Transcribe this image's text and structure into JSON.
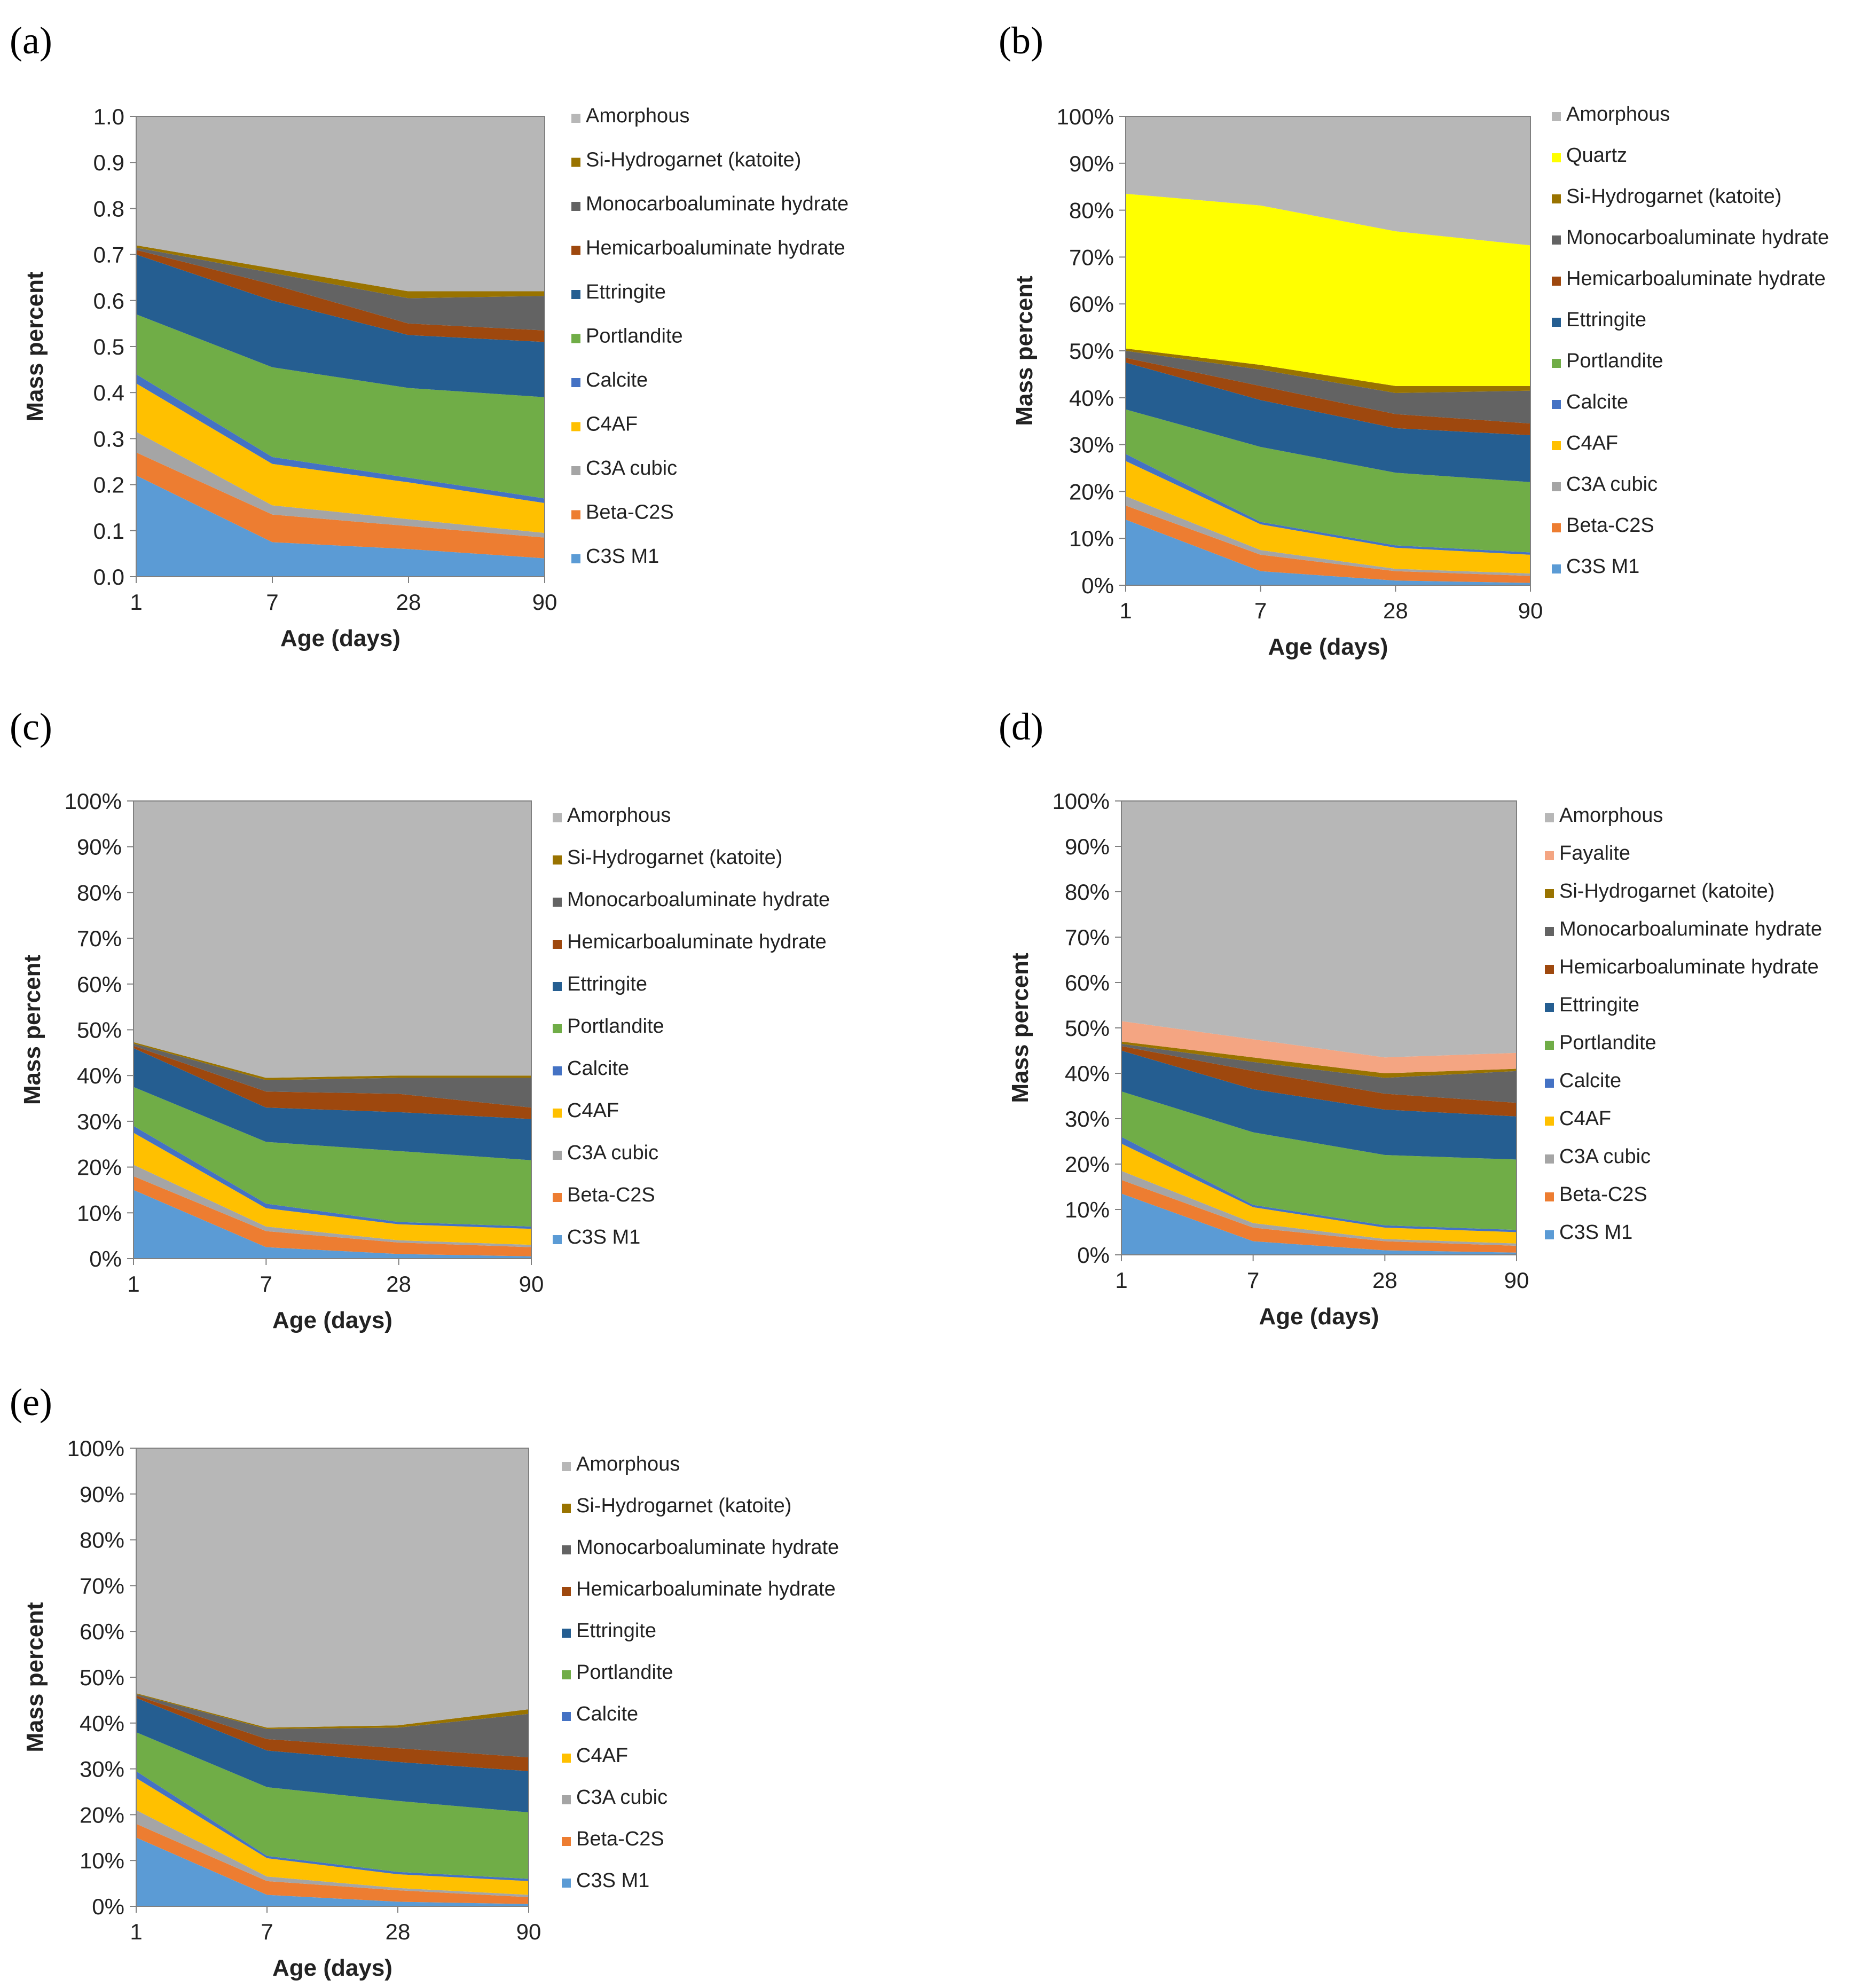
{
  "chart_data": [
    {
      "panel": "(a)",
      "type": "area",
      "stacked": true,
      "categories": [
        "1",
        "7",
        "28",
        "90"
      ],
      "xlabel": "Age (days)",
      "ylabel": "Mass percent",
      "ylim": [
        0,
        1
      ],
      "y_ticks": [
        "0.0",
        "0.1",
        "0.2",
        "0.3",
        "0.4",
        "0.5",
        "0.6",
        "0.7",
        "0.8",
        "0.9",
        "1.0"
      ],
      "legend": "right",
      "series": [
        {
          "name": "C3S M1",
          "color": "#5b9bd5",
          "values": [
            0.22,
            0.075,
            0.06,
            0.04
          ]
        },
        {
          "name": "Beta-C2S",
          "color": "#ed7d31",
          "values": [
            0.05,
            0.06,
            0.05,
            0.045
          ]
        },
        {
          "name": "C3A cubic",
          "color": "#a5a5a5",
          "values": [
            0.045,
            0.02,
            0.015,
            0.01
          ]
        },
        {
          "name": "C4AF",
          "color": "#ffc000",
          "values": [
            0.105,
            0.09,
            0.08,
            0.065
          ]
        },
        {
          "name": "Calcite",
          "color": "#4472c4",
          "values": [
            0.02,
            0.015,
            0.01,
            0.01
          ]
        },
        {
          "name": "Portlandite",
          "color": "#70ad47",
          "values": [
            0.13,
            0.195,
            0.195,
            0.22
          ]
        },
        {
          "name": "Ettringite",
          "color": "#255e91",
          "values": [
            0.13,
            0.145,
            0.115,
            0.12
          ]
        },
        {
          "name": "Hemicarboaluminate hydrate",
          "color": "#9e480e",
          "values": [
            0.01,
            0.035,
            0.025,
            0.025
          ]
        },
        {
          "name": "Monocarboaluminate hydrate",
          "color": "#636363",
          "values": [
            0.005,
            0.025,
            0.055,
            0.075
          ]
        },
        {
          "name": "Si-Hydrogarnet (katoite)",
          "color": "#997300",
          "values": [
            0.005,
            0.01,
            0.015,
            0.01
          ]
        },
        {
          "name": "Amorphous",
          "color": "#b7b7b7",
          "values": [
            0.28,
            0.335,
            0.38,
            0.38
          ]
        }
      ]
    },
    {
      "panel": "(b)",
      "type": "area",
      "stacked": true,
      "categories": [
        "1",
        "7",
        "28",
        "90"
      ],
      "xlabel": "Age (days)",
      "ylabel": "Mass percent",
      "ylim": [
        0,
        1
      ],
      "y_ticks": [
        "0%",
        "10%",
        "20%",
        "30%",
        "40%",
        "50%",
        "60%",
        "70%",
        "80%",
        "90%",
        "100%"
      ],
      "legend": "right",
      "series": [
        {
          "name": "C3S M1",
          "color": "#5b9bd5",
          "values": [
            0.14,
            0.03,
            0.01,
            0.005
          ]
        },
        {
          "name": "Beta-C2S",
          "color": "#ed7d31",
          "values": [
            0.03,
            0.035,
            0.02,
            0.015
          ]
        },
        {
          "name": "C3A cubic",
          "color": "#a5a5a5",
          "values": [
            0.02,
            0.01,
            0.005,
            0.005
          ]
        },
        {
          "name": "C4AF",
          "color": "#ffc000",
          "values": [
            0.075,
            0.055,
            0.045,
            0.04
          ]
        },
        {
          "name": "Calcite",
          "color": "#4472c4",
          "values": [
            0.015,
            0.005,
            0.005,
            0.005
          ]
        },
        {
          "name": "Portlandite",
          "color": "#70ad47",
          "values": [
            0.095,
            0.16,
            0.155,
            0.15
          ]
        },
        {
          "name": "Ettringite",
          "color": "#255e91",
          "values": [
            0.1,
            0.1,
            0.095,
            0.1
          ]
        },
        {
          "name": "Hemicarboaluminate hydrate",
          "color": "#9e480e",
          "values": [
            0.01,
            0.03,
            0.03,
            0.025
          ]
        },
        {
          "name": "Monocarboaluminate hydrate",
          "color": "#636363",
          "values": [
            0.015,
            0.035,
            0.045,
            0.07
          ]
        },
        {
          "name": "Si-Hydrogarnet (katoite)",
          "color": "#997300",
          "values": [
            0.005,
            0.01,
            0.015,
            0.01
          ]
        },
        {
          "name": "Quartz",
          "color": "#ffff00",
          "values": [
            0.33,
            0.34,
            0.33,
            0.3
          ]
        },
        {
          "name": "Amorphous",
          "color": "#b7b7b7",
          "values": [
            0.165,
            0.19,
            0.245,
            0.285
          ]
        }
      ]
    },
    {
      "panel": "(c)",
      "type": "area",
      "stacked": true,
      "categories": [
        "1",
        "7",
        "28",
        "90"
      ],
      "xlabel": "Age (days)",
      "ylabel": "Mass percent",
      "ylim": [
        0,
        1
      ],
      "y_ticks": [
        "0%",
        "10%",
        "20%",
        "30%",
        "40%",
        "50%",
        "60%",
        "70%",
        "80%",
        "90%",
        "100%"
      ],
      "legend": "right",
      "series": [
        {
          "name": "C3S M1",
          "color": "#5b9bd5",
          "values": [
            0.15,
            0.025,
            0.01,
            0.005
          ]
        },
        {
          "name": "Beta-C2S",
          "color": "#ed7d31",
          "values": [
            0.03,
            0.035,
            0.025,
            0.02
          ]
        },
        {
          "name": "C3A cubic",
          "color": "#a5a5a5",
          "values": [
            0.025,
            0.01,
            0.005,
            0.005
          ]
        },
        {
          "name": "C4AF",
          "color": "#ffc000",
          "values": [
            0.07,
            0.04,
            0.035,
            0.035
          ]
        },
        {
          "name": "Calcite",
          "color": "#4472c4",
          "values": [
            0.015,
            0.01,
            0.005,
            0.005
          ]
        },
        {
          "name": "Portlandite",
          "color": "#70ad47",
          "values": [
            0.085,
            0.135,
            0.155,
            0.145
          ]
        },
        {
          "name": "Ettringite",
          "color": "#255e91",
          "values": [
            0.085,
            0.075,
            0.085,
            0.09
          ]
        },
        {
          "name": "Hemicarboaluminate hydrate",
          "color": "#9e480e",
          "values": [
            0.005,
            0.035,
            0.04,
            0.025
          ]
        },
        {
          "name": "Monocarboaluminate hydrate",
          "color": "#636363",
          "values": [
            0.005,
            0.025,
            0.035,
            0.065
          ]
        },
        {
          "name": "Si-Hydrogarnet (katoite)",
          "color": "#997300",
          "values": [
            0.003,
            0.005,
            0.005,
            0.005
          ]
        },
        {
          "name": "Amorphous",
          "color": "#b7b7b7",
          "values": [
            0.527,
            0.61,
            0.6,
            0.6
          ]
        }
      ]
    },
    {
      "panel": "(d)",
      "type": "area",
      "stacked": true,
      "categories": [
        "1",
        "7",
        "28",
        "90"
      ],
      "xlabel": "Age (days)",
      "ylabel": "Mass percent",
      "ylim": [
        0,
        1
      ],
      "y_ticks": [
        "0%",
        "10%",
        "20%",
        "30%",
        "40%",
        "50%",
        "60%",
        "70%",
        "80%",
        "90%",
        "100%"
      ],
      "legend": "right",
      "series": [
        {
          "name": "C3S M1",
          "color": "#5b9bd5",
          "values": [
            0.135,
            0.03,
            0.01,
            0.005
          ]
        },
        {
          "name": "Beta-C2S",
          "color": "#ed7d31",
          "values": [
            0.03,
            0.03,
            0.02,
            0.015
          ]
        },
        {
          "name": "C3A cubic",
          "color": "#a5a5a5",
          "values": [
            0.02,
            0.01,
            0.005,
            0.005
          ]
        },
        {
          "name": "C4AF",
          "color": "#ffc000",
          "values": [
            0.06,
            0.035,
            0.025,
            0.025
          ]
        },
        {
          "name": "Calcite",
          "color": "#4472c4",
          "values": [
            0.015,
            0.005,
            0.005,
            0.005
          ]
        },
        {
          "name": "Portlandite",
          "color": "#70ad47",
          "values": [
            0.1,
            0.16,
            0.155,
            0.155
          ]
        },
        {
          "name": "Ettringite",
          "color": "#255e91",
          "values": [
            0.09,
            0.095,
            0.1,
            0.095
          ]
        },
        {
          "name": "Hemicarboaluminate hydrate",
          "color": "#9e480e",
          "values": [
            0.01,
            0.04,
            0.035,
            0.03
          ]
        },
        {
          "name": "Monocarboaluminate hydrate",
          "color": "#636363",
          "values": [
            0.005,
            0.02,
            0.035,
            0.07
          ]
        },
        {
          "name": "Si-Hydrogarnet (katoite)",
          "color": "#997300",
          "values": [
            0.005,
            0.01,
            0.01,
            0.005
          ]
        },
        {
          "name": "Fayalite",
          "color": "#f4a582",
          "values": [
            0.045,
            0.04,
            0.035,
            0.035
          ]
        },
        {
          "name": "Amorphous",
          "color": "#b7b7b7",
          "values": [
            0.485,
            0.525,
            0.565,
            0.555
          ]
        }
      ]
    },
    {
      "panel": "(e)",
      "type": "area",
      "stacked": true,
      "categories": [
        "1",
        "7",
        "28",
        "90"
      ],
      "xlabel": "Age (days)",
      "ylabel": "Mass percent",
      "ylim": [
        0,
        1
      ],
      "y_ticks": [
        "0%",
        "10%",
        "20%",
        "30%",
        "40%",
        "50%",
        "60%",
        "70%",
        "80%",
        "90%",
        "100%"
      ],
      "legend": "right",
      "series": [
        {
          "name": "C3S M1",
          "color": "#5b9bd5",
          "values": [
            0.15,
            0.025,
            0.01,
            0.005
          ]
        },
        {
          "name": "Beta-C2S",
          "color": "#ed7d31",
          "values": [
            0.03,
            0.03,
            0.025,
            0.015
          ]
        },
        {
          "name": "C3A cubic",
          "color": "#a5a5a5",
          "values": [
            0.03,
            0.01,
            0.005,
            0.005
          ]
        },
        {
          "name": "C4AF",
          "color": "#ffc000",
          "values": [
            0.07,
            0.04,
            0.03,
            0.03
          ]
        },
        {
          "name": "Calcite",
          "color": "#4472c4",
          "values": [
            0.015,
            0.005,
            0.005,
            0.005
          ]
        },
        {
          "name": "Portlandite",
          "color": "#70ad47",
          "values": [
            0.085,
            0.15,
            0.155,
            0.145
          ]
        },
        {
          "name": "Ettringite",
          "color": "#255e91",
          "values": [
            0.075,
            0.08,
            0.085,
            0.09
          ]
        },
        {
          "name": "Hemicarboaluminate hydrate",
          "color": "#9e480e",
          "values": [
            0.005,
            0.025,
            0.03,
            0.03
          ]
        },
        {
          "name": "Monocarboaluminate hydrate",
          "color": "#636363",
          "values": [
            0.003,
            0.022,
            0.045,
            0.095
          ]
        },
        {
          "name": "Si-Hydrogarnet (katoite)",
          "color": "#997300",
          "values": [
            0.002,
            0.003,
            0.005,
            0.01
          ]
        },
        {
          "name": "Amorphous",
          "color": "#b7b7b7",
          "values": [
            0.535,
            0.61,
            0.605,
            0.57
          ]
        }
      ]
    }
  ]
}
